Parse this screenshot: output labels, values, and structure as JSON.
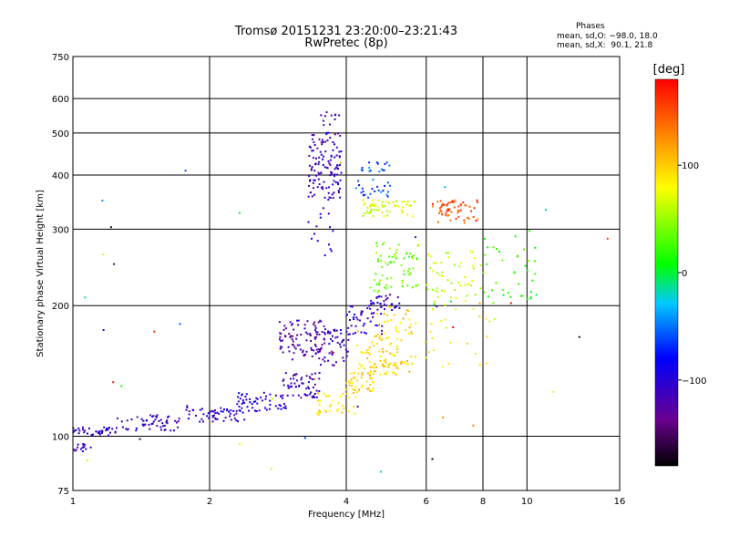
{
  "chart_data": {
    "type": "scatter",
    "title": "Tromsø 20151231 23:20:00–23:21:43",
    "subtitle": "RwPretec (8p)",
    "xlabel": "Frequency [MHz]",
    "ylabel": "Stationary phase Virtual Height [km]",
    "x_scale": "log2",
    "y_scale": "log",
    "xlim": [
      1,
      16
    ],
    "ylim": [
      75,
      750
    ],
    "x_ticks": [
      1,
      2,
      4,
      6,
      8,
      10,
      16
    ],
    "x_tick_labels": [
      "1",
      "2",
      "4",
      "6",
      "8",
      "10",
      "16"
    ],
    "y_ticks": [
      75,
      100,
      200,
      300,
      400,
      500,
      600,
      750
    ],
    "y_tick_labels": [
      "75",
      "100",
      "200",
      "300",
      "400",
      "500",
      "600",
      "750"
    ],
    "grid": true,
    "phase_info": {
      "heading": "Phases",
      "line_o": "mean, sd,O: −98.0, 18.0",
      "line_x": "mean, sd,X:  90.1, 21.8"
    },
    "colorbar": {
      "label": "[deg]",
      "range": [
        -180,
        180
      ],
      "ticks": [
        100,
        0,
        -100
      ],
      "tick_labels": [
        "100",
        "0",
        "−100"
      ],
      "colors": [
        "#000000",
        "#6a0090",
        "#0000ff",
        "#00c8ff",
        "#00ff00",
        "#ffff00",
        "#ff8c00",
        "#ff0000"
      ]
    },
    "series": [
      {
        "name": "",
        "clusters": [
          {
            "f": [
              1.0,
              1.25
            ],
            "h": [
              100,
              105
            ],
            "phase": -105,
            "n": 40
          },
          {
            "f": [
              1.0,
              1.1
            ],
            "h": [
              92,
              96
            ],
            "phase": -110,
            "n": 15
          },
          {
            "f": [
              1.25,
              1.75
            ],
            "h": [
              103,
              112
            ],
            "phase": -110,
            "n": 55
          },
          {
            "f": [
              1.75,
              2.4
            ],
            "h": [
              108,
              117
            ],
            "phase": -105,
            "n": 55
          },
          {
            "f": [
              2.3,
              2.95
            ],
            "h": [
              114,
              126
            ],
            "phase": -95,
            "n": 55
          },
          {
            "f": [
              2.9,
              3.5
            ],
            "h": [
              122,
              140
            ],
            "phase": -110,
            "n": 60
          },
          {
            "f": [
              2.85,
              3.6
            ],
            "h": [
              150,
              185
            ],
            "phase": -125,
            "n": 90
          },
          {
            "f": [
              3.4,
              4.1
            ],
            "h": [
              145,
              178
            ],
            "phase": -110,
            "n": 55
          },
          {
            "f": [
              3.3,
              3.9
            ],
            "h": [
              350,
              500
            ],
            "phase": -110,
            "n": 120
          },
          {
            "f": [
              3.5,
              3.9
            ],
            "h": [
              480,
              560
            ],
            "phase": -105,
            "n": 15
          },
          {
            "f": [
              3.3,
              3.8
            ],
            "h": [
              260,
              340
            ],
            "phase": -90,
            "n": 15
          },
          {
            "f": [
              3.4,
              4.2
            ],
            "h": [
              112,
              126
            ],
            "phase": 90,
            "n": 35
          },
          {
            "f": [
              4.0,
              4.6
            ],
            "h": [
              125,
              140
            ],
            "phase": 95,
            "n": 45
          },
          {
            "f": [
              4.2,
              5.2
            ],
            "h": [
              138,
              165
            ],
            "phase": 95,
            "n": 60
          },
          {
            "f": [
              4.8,
              5.6
            ],
            "h": [
              140,
              150
            ],
            "phase": 100,
            "n": 25
          },
          {
            "f": [
              4.0,
              4.8
            ],
            "h": [
              170,
              200
            ],
            "phase": -105,
            "n": 45
          },
          {
            "f": [
              4.5,
              5.3
            ],
            "h": [
              195,
              212
            ],
            "phase": -100,
            "n": 35
          },
          {
            "f": [
              4.6,
              5.6
            ],
            "h": [
              165,
              200
            ],
            "phase": 95,
            "n": 40
          },
          {
            "f": [
              4.5,
              5.8
            ],
            "h": [
              215,
              280
            ],
            "phase": 40,
            "n": 70
          },
          {
            "f": [
              4.3,
              5.7
            ],
            "h": [
              320,
              350
            ],
            "phase": 70,
            "n": 60
          },
          {
            "f": [
              4.2,
              5.0
            ],
            "h": [
              350,
              430
            ],
            "phase": -60,
            "n": 40
          },
          {
            "f": [
              6.2,
              7.8
            ],
            "h": [
              310,
              350
            ],
            "phase": 150,
            "n": 60
          },
          {
            "f": [
              6.0,
              8.0
            ],
            "h": [
              195,
              270
            ],
            "phase": 60,
            "n": 55
          },
          {
            "f": [
              8.0,
              10.5
            ],
            "h": [
              200,
              300
            ],
            "phase": 20,
            "n": 40
          },
          {
            "f": [
              5.5,
              9.0
            ],
            "h": [
              140,
              190
            ],
            "phase": 80,
            "n": 25
          },
          {
            "f": [
              1.0,
              16.0
            ],
            "h": [
              80,
              450
            ],
            "phase": 0,
            "n": 40
          }
        ]
      }
    ]
  }
}
